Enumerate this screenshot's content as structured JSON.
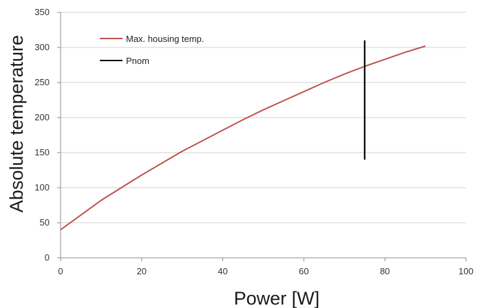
{
  "chart_data": {
    "type": "line",
    "xlabel": "Power [W]",
    "ylabel": "Absolute temperature",
    "xlim": [
      0,
      100
    ],
    "ylim": [
      0,
      350
    ],
    "xticks": [
      0,
      20,
      40,
      60,
      80,
      100
    ],
    "yticks": [
      0,
      50,
      100,
      150,
      200,
      250,
      300,
      350
    ],
    "xtick_labels": [
      "0",
      "20",
      "40",
      "60",
      "80",
      "100"
    ],
    "ytick_labels": [
      "0",
      "50",
      "100",
      "150",
      "200",
      "250",
      "300",
      "350"
    ],
    "grid": "horizontal",
    "legend_position": "top-left",
    "series": [
      {
        "name": "Max. housing temp.",
        "color": "#c0504d",
        "x": [
          0,
          5,
          10,
          15,
          20,
          25,
          30,
          35,
          40,
          45,
          50,
          55,
          60,
          65,
          70,
          75,
          80,
          85,
          90
        ],
        "y": [
          40,
          61,
          82,
          100,
          118,
          135,
          152,
          167,
          182,
          197,
          211,
          224,
          237,
          250,
          262,
          273,
          283,
          293,
          302
        ]
      },
      {
        "name": "Pnom",
        "color": "#000000",
        "x": [
          75,
          75
        ],
        "y": [
          140,
          310
        ]
      }
    ]
  }
}
